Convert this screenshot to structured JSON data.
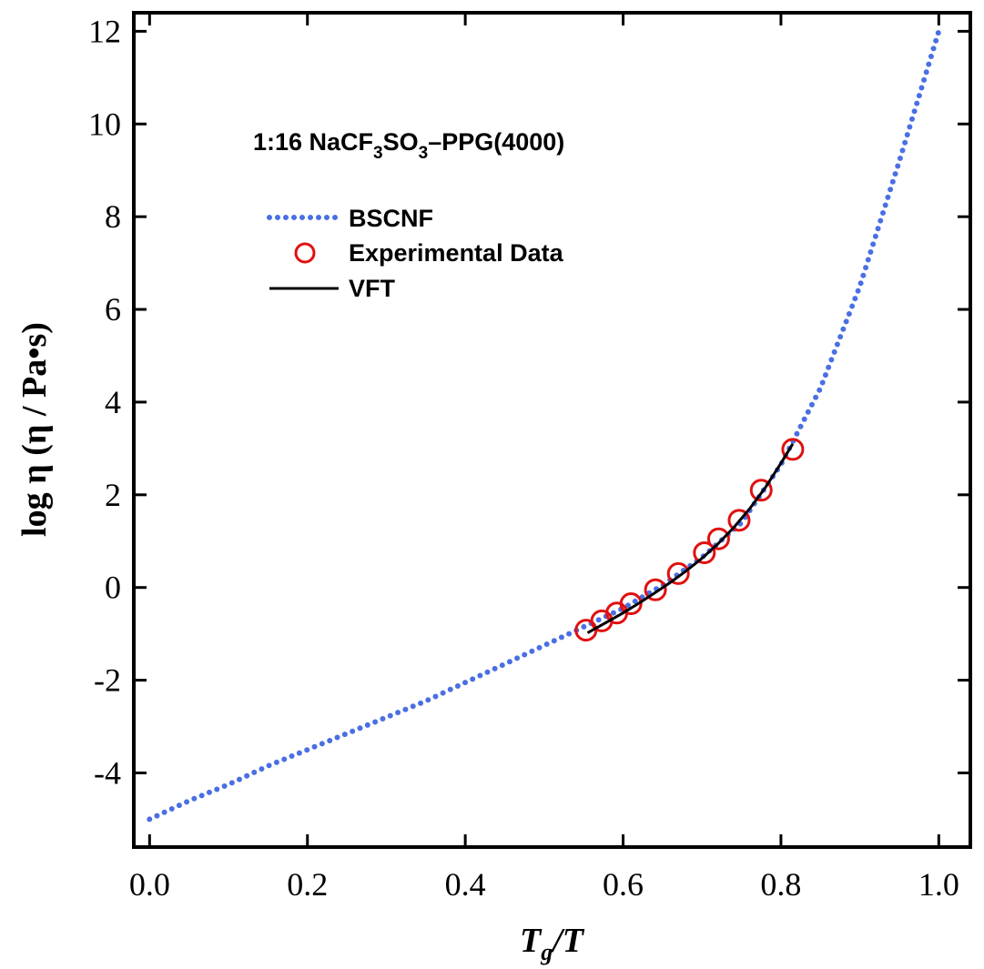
{
  "chart_data": {
    "type": "line",
    "title": "",
    "annotation": {
      "prefix": "1:16 NaCF",
      "sub1": "3",
      "mid": "SO",
      "sub2": "3",
      "suffix": "–PPG(4000)"
    },
    "xlabel": {
      "main1": "T",
      "sub": "g",
      "main2": "/T"
    },
    "ylabel": "log η (η / Pa•s)",
    "xlim": [
      -0.02,
      1.04
    ],
    "ylim": [
      -5.6,
      12.4
    ],
    "x_ticks": [
      0.0,
      0.2,
      0.4,
      0.6,
      0.8,
      1.0
    ],
    "x_tick_labels": [
      "0.0",
      "0.2",
      "0.4",
      "0.6",
      "0.8",
      "1.0"
    ],
    "y_ticks": [
      -4,
      -2,
      0,
      2,
      4,
      6,
      8,
      10,
      12
    ],
    "y_tick_labels": [
      "-4",
      "-2",
      "0",
      "2",
      "4",
      "6",
      "8",
      "10",
      "12"
    ],
    "grid": false,
    "legend_position": "upper-left",
    "series": [
      {
        "name": "BSCNF",
        "style": "dotted",
        "color": "#4a6fe3",
        "x": [
          0.0,
          0.05,
          0.1,
          0.15,
          0.2,
          0.25,
          0.3,
          0.35,
          0.4,
          0.45,
          0.5,
          0.55,
          0.6,
          0.65,
          0.7,
          0.75,
          0.8,
          0.85,
          0.9,
          0.95,
          1.0
        ],
        "y": [
          -5.0,
          -4.6,
          -4.25,
          -3.85,
          -3.5,
          -3.15,
          -2.8,
          -2.45,
          -2.05,
          -1.65,
          -1.25,
          -0.85,
          -0.45,
          0.05,
          0.65,
          1.4,
          2.65,
          4.3,
          6.5,
          9.2,
          12.0
        ]
      },
      {
        "name": "Experimental Data",
        "style": "open-circle",
        "color": "#e01010",
        "x": [
          0.553,
          0.573,
          0.592,
          0.61,
          0.641,
          0.67,
          0.703,
          0.721,
          0.747,
          0.775,
          0.815
        ],
        "y": [
          -0.92,
          -0.72,
          -0.55,
          -0.35,
          -0.05,
          0.3,
          0.75,
          1.05,
          1.45,
          2.1,
          2.98
        ]
      },
      {
        "name": "VFT",
        "style": "solid",
        "color": "#000000",
        "x": [
          0.555,
          0.58,
          0.6,
          0.62,
          0.64,
          0.66,
          0.68,
          0.7,
          0.72,
          0.74,
          0.76,
          0.78,
          0.8,
          0.815
        ],
        "y": [
          -0.98,
          -0.74,
          -0.55,
          -0.34,
          -0.12,
          0.11,
          0.36,
          0.63,
          0.94,
          1.29,
          1.69,
          2.15,
          2.68,
          3.1
        ]
      }
    ]
  }
}
